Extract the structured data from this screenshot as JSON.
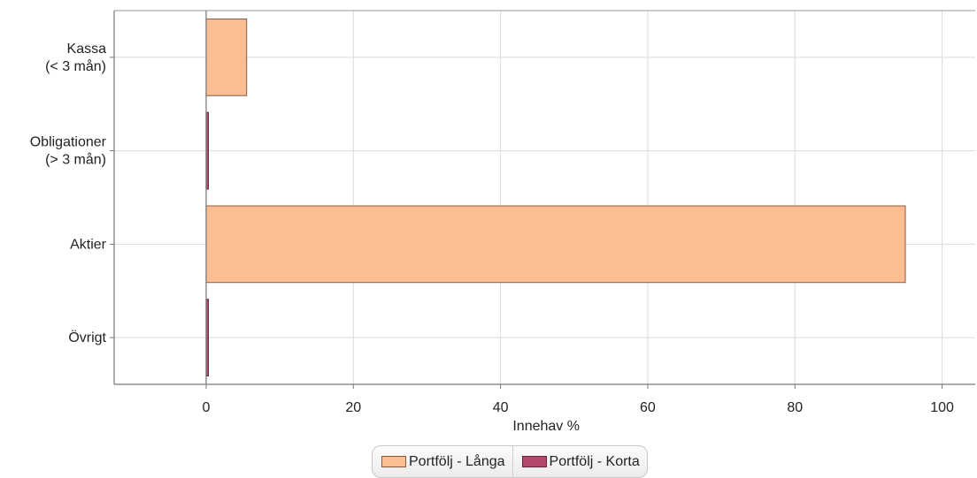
{
  "chart_data": {
    "type": "bar",
    "orientation": "horizontal",
    "categories": [
      "Kassa\n(< 3 mån)",
      "Obligationer\n(> 3 mån)",
      "Aktier",
      "Övrigt"
    ],
    "series": [
      {
        "name": "Portfölj - Långa",
        "values": [
          5.5,
          0,
          95,
          0
        ],
        "color": "#fcbd93",
        "stroke": "#8a5a3c"
      },
      {
        "name": "Portfölj - Korta",
        "values": [
          0,
          0.3,
          0,
          0.3
        ],
        "color": "#b34a6e",
        "stroke": "#6b1f3d"
      }
    ],
    "xlabel": "Innehav %",
    "xlim": [
      -12.5,
      104.5
    ],
    "xticks": [
      0,
      20,
      40,
      60,
      80,
      100
    ],
    "grid": true,
    "legend": "bottom-center"
  },
  "legend": {
    "items": [
      {
        "label": "Portfölj - Långa",
        "color": "#fcbd93"
      },
      {
        "label": "Portfölj - Korta",
        "color": "#b34a6e"
      }
    ]
  }
}
